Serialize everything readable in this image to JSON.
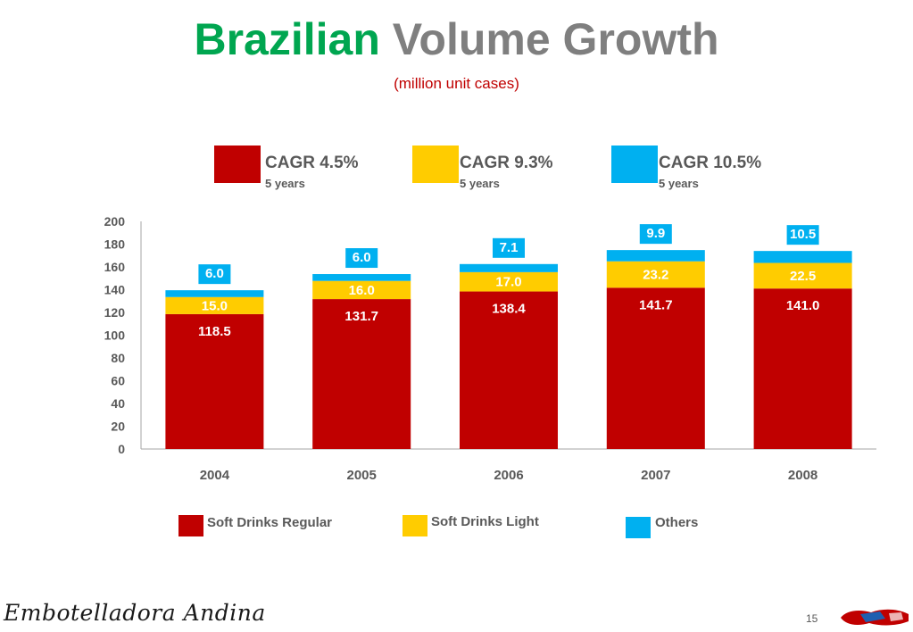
{
  "title": {
    "part1": "Brazilian",
    "part2": "Volume Growth"
  },
  "subtitle": "(million unit cases)",
  "cagr": [
    {
      "value": "CAGR 4.5%",
      "period": "5 years",
      "color": "#c00000"
    },
    {
      "value": "CAGR 9.3%",
      "period": "5 years",
      "color": "#ffcc00"
    },
    {
      "value": "CAGR 10.5%",
      "period": "5 years",
      "color": "#00b0f0"
    }
  ],
  "legend": [
    {
      "label": "Soft Drinks Regular",
      "color": "#c00000"
    },
    {
      "label": "Soft Drinks Light",
      "color": "#ffcc00"
    },
    {
      "label": "Others",
      "color": "#00b0f0"
    }
  ],
  "footer": {
    "logo": "Embotelladora Andina",
    "page": "15"
  },
  "chart_data": {
    "type": "bar",
    "stacked": true,
    "categories": [
      "2004",
      "2005",
      "2006",
      "2007",
      "2008"
    ],
    "series": [
      {
        "name": "Soft Drinks Regular",
        "color": "#c00000",
        "values": [
          118.5,
          131.7,
          138.4,
          141.7,
          141.0
        ],
        "labels": [
          "118.5",
          "131.7",
          "138.4",
          "141.7",
          "141.0"
        ]
      },
      {
        "name": "Soft Drinks Light",
        "color": "#ffcc00",
        "values": [
          15.0,
          16.0,
          17.0,
          23.2,
          22.5
        ],
        "labels": [
          "15.0",
          "16.0",
          "17.0",
          "23.2",
          "22.5"
        ]
      },
      {
        "name": "Others",
        "color": "#00b0f0",
        "values": [
          6.0,
          6.0,
          7.1,
          9.9,
          10.5
        ],
        "labels": [
          "6.0",
          "6.0",
          "7.1",
          "9.9",
          "10.5"
        ]
      }
    ],
    "ylim": [
      0,
      200
    ],
    "yticks": [
      "0",
      "20",
      "40",
      "60",
      "80",
      "100",
      "120",
      "140",
      "160",
      "180",
      "200"
    ],
    "grid": false,
    "legend": "bottom"
  }
}
